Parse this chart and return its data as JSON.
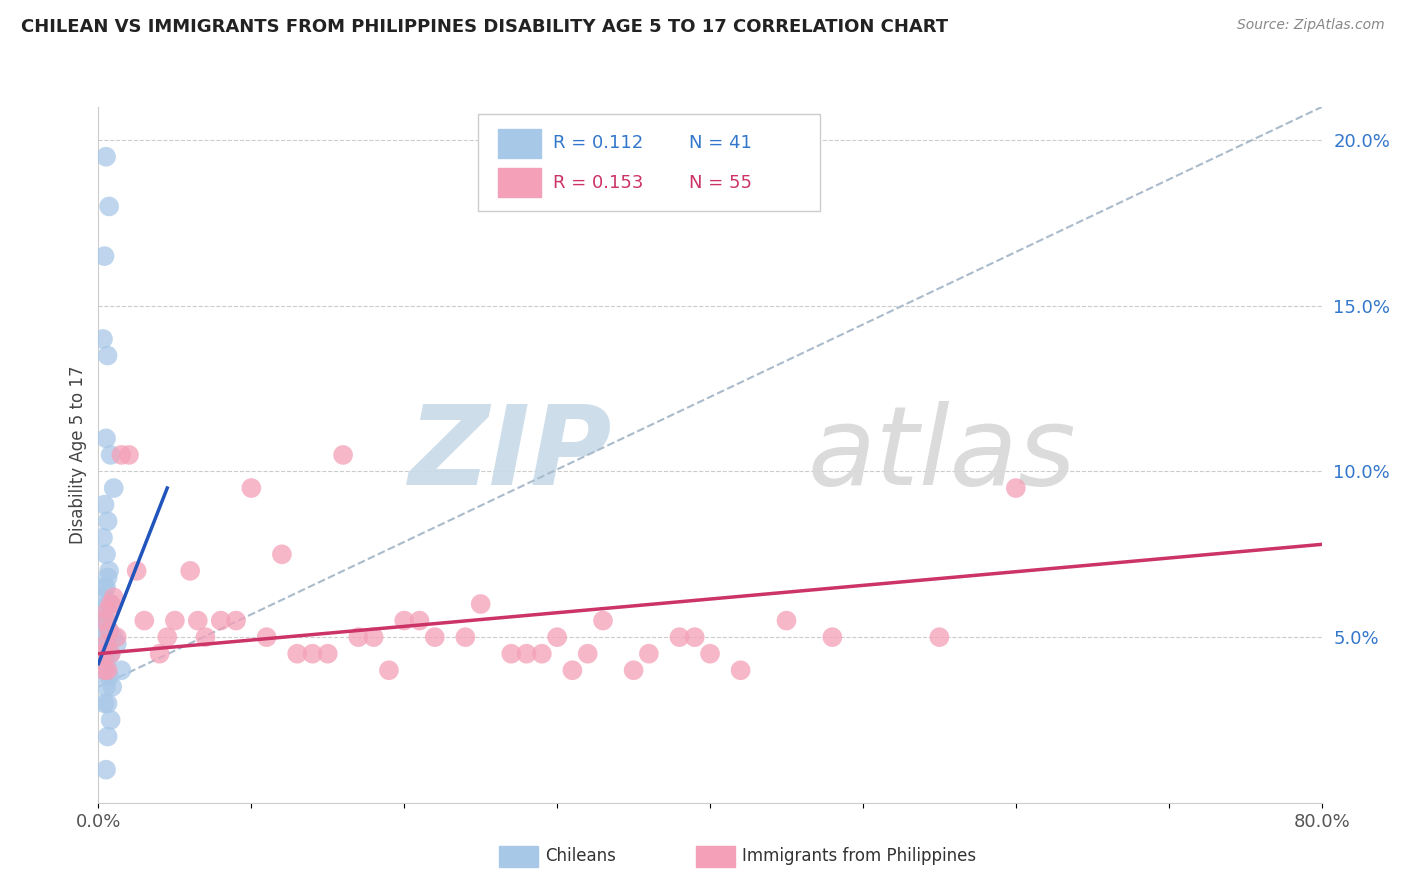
{
  "title": "CHILEAN VS IMMIGRANTS FROM PHILIPPINES DISABILITY AGE 5 TO 17 CORRELATION CHART",
  "source_text": "Source: ZipAtlas.com",
  "ylabel": "Disability Age 5 to 17",
  "xlim": [
    0.0,
    80.0
  ],
  "ylim": [
    0.0,
    21.0
  ],
  "x_ticks": [
    0.0,
    10.0,
    20.0,
    30.0,
    40.0,
    50.0,
    60.0,
    70.0,
    80.0
  ],
  "y_tick_right_labels": [
    "5.0%",
    "10.0%",
    "15.0%",
    "20.0%"
  ],
  "y_tick_right_vals": [
    5.0,
    10.0,
    15.0,
    20.0
  ],
  "legend_r1": "R = 0.112",
  "legend_n1": "N = 41",
  "legend_r2": "R = 0.153",
  "legend_n2": "N = 55",
  "color_blue": "#a8c8e8",
  "color_pink": "#f4a0b8",
  "color_blue_text": "#3377cc",
  "color_pink_text": "#cc3366",
  "color_trend_blue": "#2255bb",
  "color_trend_pink": "#cc3366",
  "color_trend_dashed": "#aabbcc",
  "watermark_color": "#d8e8f4",
  "blue_scatter_x": [
    0.5,
    0.7,
    0.4,
    0.3,
    0.6,
    0.5,
    0.8,
    1.0,
    0.4,
    0.6,
    0.3,
    0.5,
    0.7,
    0.6,
    0.4,
    0.5,
    0.3,
    0.6,
    0.8,
    0.4,
    0.5,
    0.3,
    0.7,
    0.5,
    0.4,
    1.0,
    1.2,
    0.8,
    0.6,
    0.4,
    0.5,
    1.5,
    0.3,
    0.7,
    0.9,
    0.5,
    0.6,
    0.4,
    0.8,
    0.6,
    0.5
  ],
  "blue_scatter_y": [
    19.5,
    18.0,
    16.5,
    14.0,
    13.5,
    11.0,
    10.5,
    9.5,
    9.0,
    8.5,
    8.0,
    7.5,
    7.0,
    6.8,
    6.5,
    6.5,
    6.2,
    6.0,
    6.0,
    5.8,
    5.5,
    5.5,
    5.2,
    5.0,
    5.0,
    5.0,
    4.8,
    4.5,
    4.5,
    4.5,
    4.2,
    4.0,
    4.0,
    3.8,
    3.5,
    3.5,
    3.0,
    3.0,
    2.5,
    2.0,
    1.0
  ],
  "pink_scatter_x": [
    0.3,
    0.5,
    0.7,
    0.4,
    0.6,
    0.8,
    1.0,
    1.5,
    2.0,
    3.0,
    4.0,
    5.0,
    6.0,
    7.0,
    8.0,
    9.0,
    10.0,
    11.0,
    12.0,
    13.0,
    14.0,
    15.0,
    16.0,
    17.0,
    18.0,
    19.0,
    20.0,
    21.0,
    22.0,
    24.0,
    25.0,
    27.0,
    28.0,
    29.0,
    30.0,
    31.0,
    32.0,
    33.0,
    35.0,
    36.0,
    38.0,
    39.0,
    40.0,
    42.0,
    45.0,
    48.0,
    55.0,
    60.0,
    0.4,
    0.6,
    0.8,
    1.2,
    2.5,
    4.5,
    6.5
  ],
  "pink_scatter_y": [
    4.5,
    4.8,
    5.2,
    5.5,
    5.8,
    6.0,
    6.2,
    10.5,
    10.5,
    5.5,
    4.5,
    5.5,
    7.0,
    5.0,
    5.5,
    5.5,
    9.5,
    5.0,
    7.5,
    4.5,
    4.5,
    4.5,
    10.5,
    5.0,
    5.0,
    4.0,
    5.5,
    5.5,
    5.0,
    5.0,
    6.0,
    4.5,
    4.5,
    4.5,
    5.0,
    4.0,
    4.5,
    5.5,
    4.0,
    4.5,
    5.0,
    5.0,
    4.5,
    4.0,
    5.5,
    5.0,
    5.0,
    9.5,
    4.0,
    4.0,
    4.5,
    5.0,
    7.0,
    5.0,
    5.5
  ],
  "blue_trend_x": [
    0.0,
    4.5
  ],
  "blue_trend_y": [
    4.2,
    9.5
  ],
  "pink_trend_x": [
    0.0,
    80.0
  ],
  "pink_trend_y": [
    4.5,
    7.8
  ],
  "dashed_trend_x": [
    0.0,
    80.0
  ],
  "dashed_trend_y": [
    3.5,
    21.0
  ]
}
